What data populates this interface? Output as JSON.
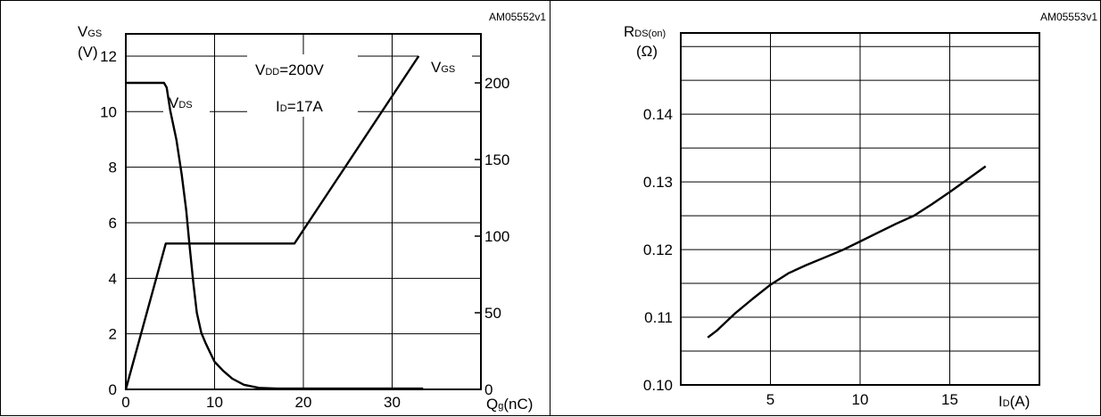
{
  "chart_data": [
    {
      "type": "line",
      "reference_code": "AM05552v1",
      "xlabel": {
        "main": "Q",
        "sub": "g",
        "unit": "(nC)"
      },
      "ylabel_left": {
        "main": "V",
        "sub": "GS",
        "unit": "(V)"
      },
      "annotations": {
        "vdd": {
          "main": "V",
          "sub": "DD",
          "rest": "=200V"
        },
        "id": {
          "main": "I",
          "sub": "D",
          "rest": "=17A"
        },
        "vds_series_label": {
          "main": "V",
          "sub": "DS"
        },
        "vgs_series_label": {
          "main": "V",
          "sub": "GS"
        }
      },
      "x_ticks": [
        0,
        10,
        20,
        30
      ],
      "y_left_ticks": [
        0,
        2,
        4,
        6,
        8,
        10,
        12
      ],
      "y_right_ticks": [
        0,
        50,
        100,
        150,
        200
      ],
      "xlim": [
        0,
        40
      ],
      "ylim_left": [
        0,
        12.8
      ],
      "ylim_right": [
        0,
        232
      ],
      "grid": true,
      "series": [
        {
          "name": "VGS",
          "axis": "left",
          "x": [
            0,
            4.5,
            19,
            33
          ],
          "y": [
            0,
            5.25,
            5.25,
            12
          ]
        },
        {
          "name": "VDS",
          "axis": "right",
          "x": [
            0,
            4.3,
            4.6,
            5,
            5.7,
            6.3,
            6.8,
            7.2,
            7.6,
            8,
            8.5,
            9,
            9.5,
            10,
            11,
            12,
            13.3,
            15,
            17,
            33.5
          ],
          "y": [
            200,
            200,
            197,
            182,
            163,
            140,
            117,
            93,
            70,
            50,
            37,
            30,
            24,
            18,
            12,
            7,
            3,
            1,
            0.5,
            0.5
          ]
        }
      ]
    },
    {
      "type": "line",
      "reference_code": "AM05553v1",
      "xlabel": {
        "main": "I",
        "sub": "D",
        "unit": "(A)"
      },
      "ylabel": {
        "main": "R",
        "sub": "DS(on)",
        "unit": "(Ω)"
      },
      "x_ticks": [
        5,
        10,
        15
      ],
      "y_ticks": [
        "0.10",
        "0.11",
        "0.12",
        "0.13",
        "0.14"
      ],
      "xlim": [
        0,
        20
      ],
      "ylim": [
        0.1,
        0.152
      ],
      "grid": true,
      "series": [
        {
          "name": "RDS(on)",
          "x": [
            1.5,
            2,
            3,
            4,
            5,
            6,
            7,
            8,
            9,
            10,
            11,
            12,
            13,
            14,
            15,
            16,
            17
          ],
          "y": [
            0.107,
            0.108,
            0.1105,
            0.1127,
            0.1148,
            0.1165,
            0.1177,
            0.1188,
            0.1199,
            0.1212,
            0.1225,
            0.1238,
            0.125,
            0.1267,
            0.1285,
            0.1304,
            0.1323
          ]
        }
      ]
    }
  ]
}
